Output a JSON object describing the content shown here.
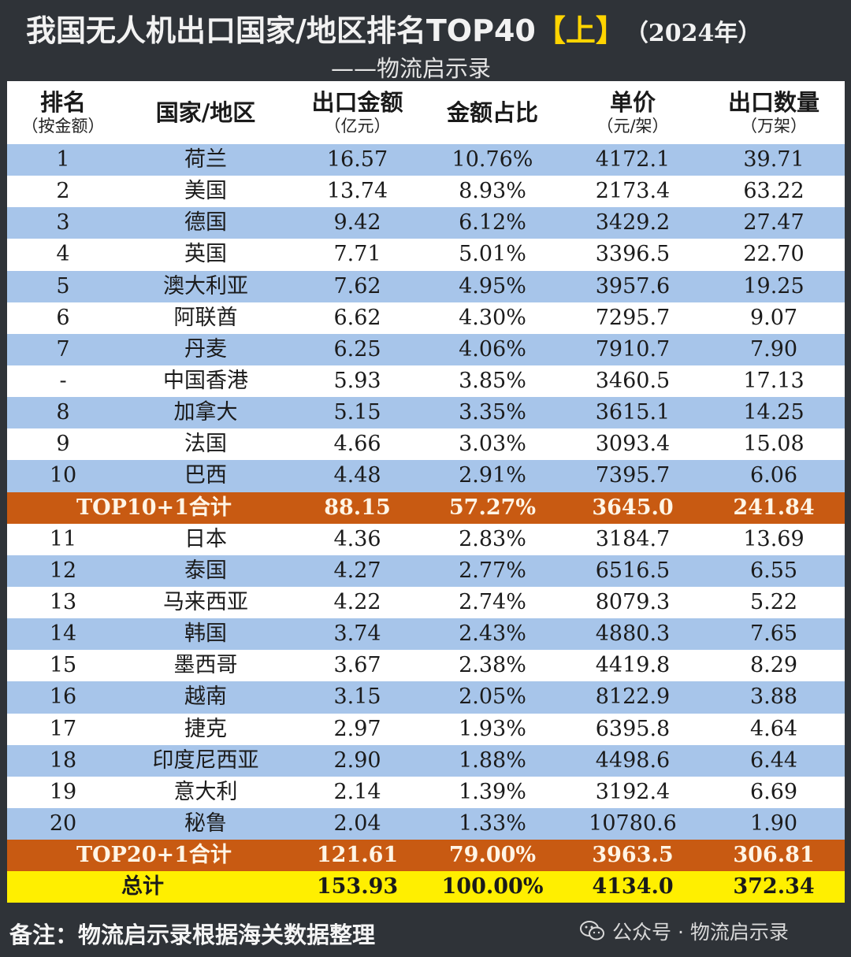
{
  "title": {
    "main": "我国无人机出口国家/地区排名TOP40",
    "tag": "【上】",
    "year": "（2024年）"
  },
  "subtitle": "——物流启示录",
  "headers": [
    {
      "main": "排名",
      "sub": "（按金额）"
    },
    {
      "main": "国家/地区",
      "sub": ""
    },
    {
      "main": "出口金额",
      "sub": "（亿元）"
    },
    {
      "main": "金额占比",
      "sub": ""
    },
    {
      "main": "单价",
      "sub": "（元/架）"
    },
    {
      "main": "出口数量",
      "sub": "（万架）"
    }
  ],
  "rows": [
    {
      "rank": "1",
      "name": "荷兰",
      "amount": "16.57",
      "share": "10.76%",
      "price": "4172.1",
      "qty": "39.71",
      "style": "blue"
    },
    {
      "rank": "2",
      "name": "美国",
      "amount": "13.74",
      "share": "8.93%",
      "price": "2173.4",
      "qty": "63.22",
      "style": "white"
    },
    {
      "rank": "3",
      "name": "德国",
      "amount": "9.42",
      "share": "6.12%",
      "price": "3429.2",
      "qty": "27.47",
      "style": "blue"
    },
    {
      "rank": "4",
      "name": "英国",
      "amount": "7.71",
      "share": "5.01%",
      "price": "3396.5",
      "qty": "22.70",
      "style": "white"
    },
    {
      "rank": "5",
      "name": "澳大利亚",
      "amount": "7.62",
      "share": "4.95%",
      "price": "3957.6",
      "qty": "19.25",
      "style": "blue"
    },
    {
      "rank": "6",
      "name": "阿联酋",
      "amount": "6.62",
      "share": "4.30%",
      "price": "7295.7",
      "qty": "9.07",
      "style": "white"
    },
    {
      "rank": "7",
      "name": "丹麦",
      "amount": "6.25",
      "share": "4.06%",
      "price": "7910.7",
      "qty": "7.90",
      "style": "blue"
    },
    {
      "rank": "-",
      "name": "中国香港",
      "amount": "5.93",
      "share": "3.85%",
      "price": "3460.5",
      "qty": "17.13",
      "style": "white"
    },
    {
      "rank": "8",
      "name": "加拿大",
      "amount": "5.15",
      "share": "3.35%",
      "price": "3615.1",
      "qty": "14.25",
      "style": "blue"
    },
    {
      "rank": "9",
      "name": "法国",
      "amount": "4.66",
      "share": "3.03%",
      "price": "3093.4",
      "qty": "15.08",
      "style": "white"
    },
    {
      "rank": "10",
      "name": "巴西",
      "amount": "4.48",
      "share": "2.91%",
      "price": "7395.7",
      "qty": "6.06",
      "style": "blue"
    },
    {
      "rank": "TOP10+1合计",
      "name": "",
      "amount": "88.15",
      "share": "57.27%",
      "price": "3645.0",
      "qty": "241.84",
      "style": "total"
    },
    {
      "rank": "11",
      "name": "日本",
      "amount": "4.36",
      "share": "2.83%",
      "price": "3184.7",
      "qty": "13.69",
      "style": "white"
    },
    {
      "rank": "12",
      "name": "泰国",
      "amount": "4.27",
      "share": "2.77%",
      "price": "6516.5",
      "qty": "6.55",
      "style": "blue"
    },
    {
      "rank": "13",
      "name": "马来西亚",
      "amount": "4.22",
      "share": "2.74%",
      "price": "8079.3",
      "qty": "5.22",
      "style": "white"
    },
    {
      "rank": "14",
      "name": "韩国",
      "amount": "3.74",
      "share": "2.43%",
      "price": "4880.3",
      "qty": "7.65",
      "style": "blue"
    },
    {
      "rank": "15",
      "name": "墨西哥",
      "amount": "3.67",
      "share": "2.38%",
      "price": "4419.8",
      "qty": "8.29",
      "style": "white"
    },
    {
      "rank": "16",
      "name": "越南",
      "amount": "3.15",
      "share": "2.05%",
      "price": "8122.9",
      "qty": "3.88",
      "style": "blue"
    },
    {
      "rank": "17",
      "name": "捷克",
      "amount": "2.97",
      "share": "1.93%",
      "price": "6395.8",
      "qty": "4.64",
      "style": "white"
    },
    {
      "rank": "18",
      "name": "印度尼西亚",
      "amount": "2.90",
      "share": "1.88%",
      "price": "4498.6",
      "qty": "6.44",
      "style": "blue"
    },
    {
      "rank": "19",
      "name": "意大利",
      "amount": "2.14",
      "share": "1.39%",
      "price": "3192.4",
      "qty": "6.69",
      "style": "white"
    },
    {
      "rank": "20",
      "name": "秘鲁",
      "amount": "2.04",
      "share": "1.33%",
      "price": "10780.6",
      "qty": "1.90",
      "style": "blue"
    },
    {
      "rank": "TOP20+1合计",
      "name": "",
      "amount": "121.61",
      "share": "79.00%",
      "price": "3963.5",
      "qty": "306.81",
      "style": "total"
    },
    {
      "rank": "总计",
      "name": "",
      "amount": "153.93",
      "share": "100.00%",
      "price": "4134.0",
      "qty": "372.34",
      "style": "grand"
    }
  ],
  "footer": {
    "note": "备注：物流启示录根据海关数据整理",
    "watermark": "公众号 · 物流启示录",
    "watermark_icon": "wechat-icon"
  },
  "colors": {
    "background": "#2f3338",
    "row_blue": "#a7c5ea",
    "row_white": "#ffffff",
    "subtotal": "#c85a12",
    "grand_total": "#ffef00",
    "title_tag": "#ffd400"
  }
}
